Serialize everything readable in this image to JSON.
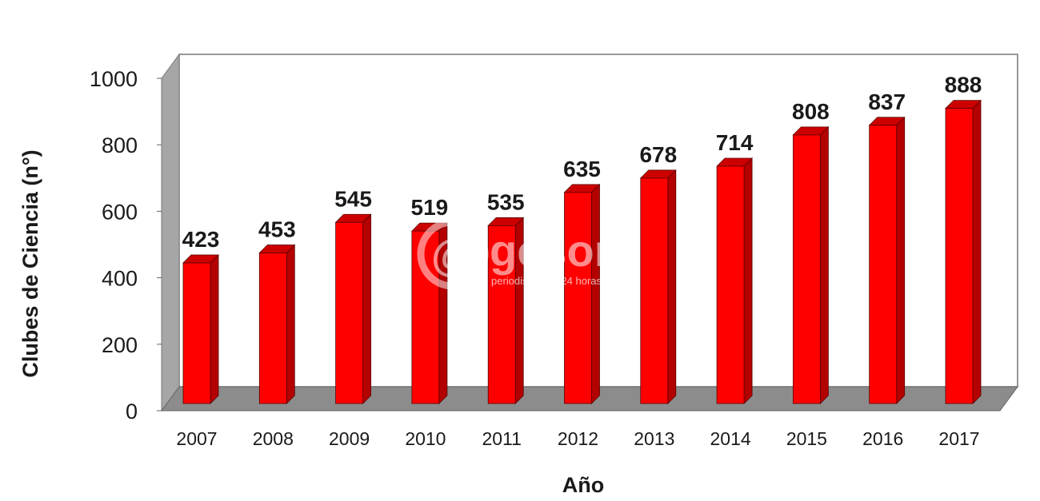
{
  "chart_data": {
    "type": "bar",
    "title": "",
    "xlabel": "Año",
    "ylabel": "Clubes de Ciencia (n°)",
    "categories": [
      "2007",
      "2008",
      "2009",
      "2010",
      "2011",
      "2012",
      "2013",
      "2014",
      "2015",
      "2016",
      "2017"
    ],
    "values": [
      423,
      453,
      545,
      519,
      535,
      635,
      678,
      714,
      808,
      837,
      888
    ],
    "value_labels": [
      "423",
      "453",
      "545",
      "519",
      "535",
      "635",
      "678",
      "714",
      "808",
      "837",
      "888"
    ],
    "ylim": [
      0,
      1000
    ],
    "yticks": [
      "0",
      "200",
      "400",
      "600",
      "800",
      "1000"
    ],
    "grid": false,
    "legend": "none",
    "style": "3d",
    "colors": {
      "bar_front": "#ff0000",
      "bar_side": "#b30000",
      "bar_top": "#cc0000",
      "back_wall": "#ffffff",
      "side_wall": "#a6a6a6",
      "floor": "#8c8c8c"
    }
  },
  "watermark": {
    "brand": "gesor",
    "symbol": "@",
    "tagline": "periodismo las 24 horas"
  }
}
